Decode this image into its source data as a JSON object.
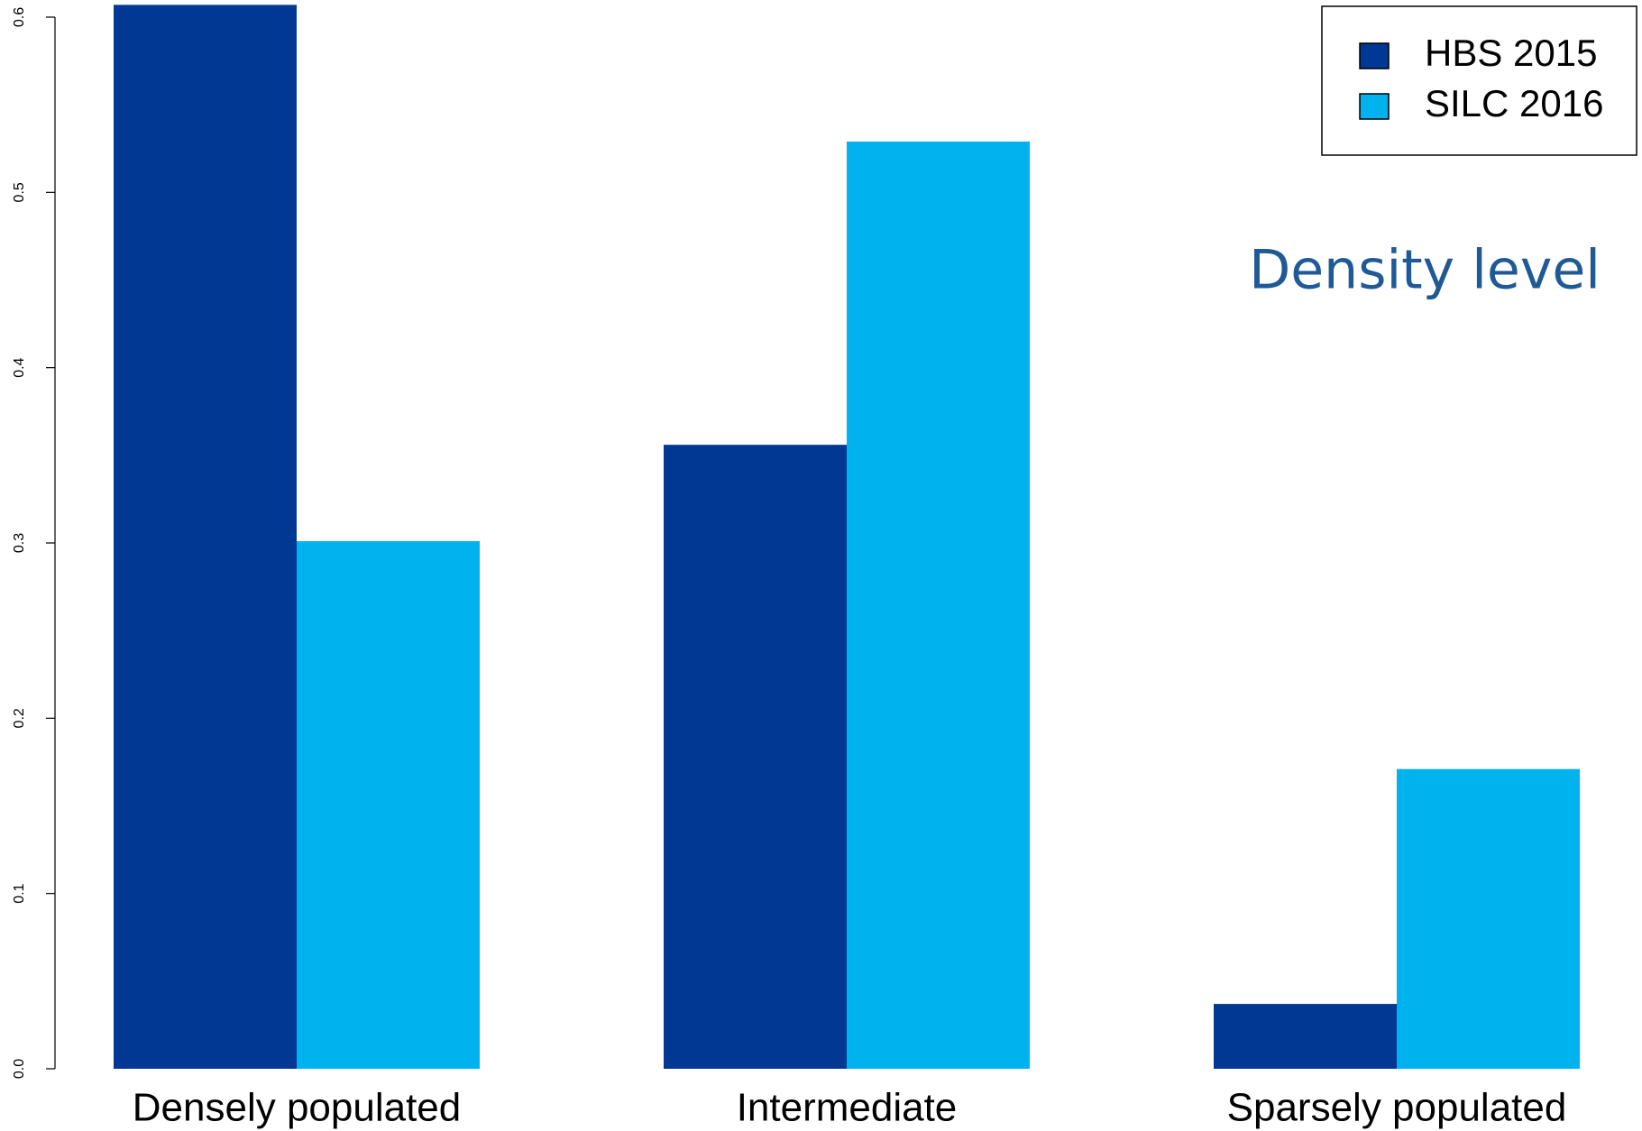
{
  "chart_data": {
    "type": "bar",
    "annotation": "Density level",
    "categories": [
      "Densely populated",
      "Intermediate",
      "Sparsely populated"
    ],
    "series": [
      {
        "name": "HBS 2015",
        "color": "#003893",
        "values": [
          0.607,
          0.356,
          0.037
        ]
      },
      {
        "name": "SILC 2016",
        "color": "#00b2ee",
        "values": [
          0.301,
          0.529,
          0.171
        ]
      }
    ],
    "ylim": [
      0,
      0.6
    ],
    "yticks": [
      {
        "value": 0,
        "label": "0.0"
      },
      0.1,
      0.2,
      0.3,
      0.4,
      0.5,
      0.6
    ],
    "grid": false,
    "legend": "top-right"
  }
}
